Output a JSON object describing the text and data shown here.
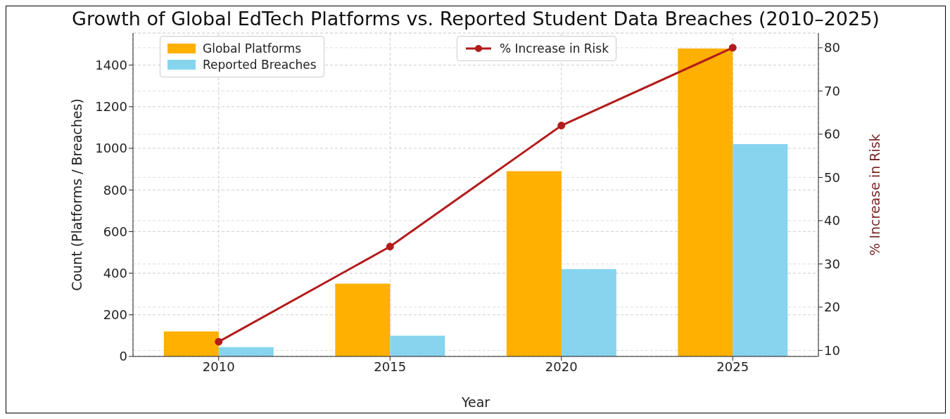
{
  "chart_data": {
    "type": "bar",
    "title": "Growth of Global EdTech Platforms vs. Reported Student Data Breaches (2010–2025)",
    "xlabel": "Year",
    "ylabel": "Count (Platforms / Breaches)",
    "y2label": "% Increase in Risk",
    "categories": [
      "2010",
      "2015",
      "2020",
      "2025"
    ],
    "series": [
      {
        "name": "Global Platforms",
        "color": "#ffb000",
        "values": [
          120,
          350,
          890,
          1480
        ]
      },
      {
        "name": "Reported Breaches",
        "color": "#87d4ee",
        "values": [
          45,
          100,
          420,
          1020
        ]
      },
      {
        "name": "% Increase in Risk",
        "type": "line",
        "axis": "y2",
        "color": "#b31b1b",
        "values": [
          12,
          34,
          62,
          80
        ]
      }
    ],
    "ylim": [
      0,
      1554
    ],
    "yticks": [
      0,
      200,
      400,
      600,
      800,
      1000,
      1200,
      1400
    ],
    "y2lim": [
      8.6,
      83.4
    ],
    "y2ticks": [
      10,
      20,
      30,
      40,
      50,
      60,
      70,
      80
    ],
    "grid": true,
    "legend": "top",
    "marker": "circle",
    "line_style": "solid"
  }
}
